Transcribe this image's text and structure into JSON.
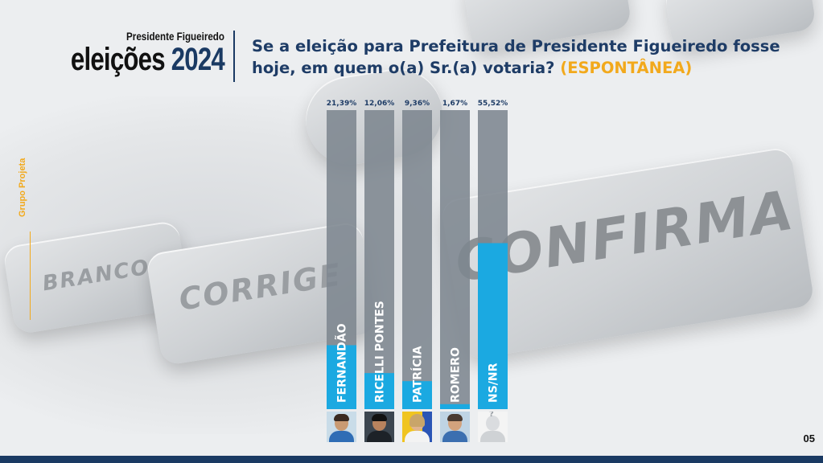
{
  "header": {
    "city": "Presidente Figueiredo",
    "brand_word": "eleições",
    "brand_year": "2024",
    "question": "Se a eleição para Prefeitura de Presidente Figueiredo fosse hoje, em quem o(a) Sr.(a) votaria?",
    "question_highlight": "(ESPONTÂNEA)"
  },
  "side_caption": "Grupo Projeta",
  "background_keys": {
    "branco": "BRANCO",
    "corrige": "CORRIGE",
    "confirma": "CONFIRMA"
  },
  "page_number": "05",
  "colors": {
    "bar_fill": "#1ba9e1",
    "bar_track": "#7d868f",
    "navy": "#1a3a63",
    "accent": "#f2a91c"
  },
  "chart_data": {
    "type": "bar",
    "title": "",
    "categories": [
      "FERNANDÃO",
      "RICELLI PONTES",
      "PATRÍCIA",
      "ROMERO",
      "NS/NR"
    ],
    "values": [
      21.39,
      12.06,
      9.36,
      1.67,
      55.52
    ],
    "value_labels": [
      "21,39%",
      "12,06%",
      "9,36%",
      "1,67%",
      "55,52%"
    ],
    "unit": "%",
    "ylim": [
      0,
      100
    ],
    "orientation": "vertical",
    "category_labels_rotated": true,
    "grid": false,
    "legend": "none"
  }
}
